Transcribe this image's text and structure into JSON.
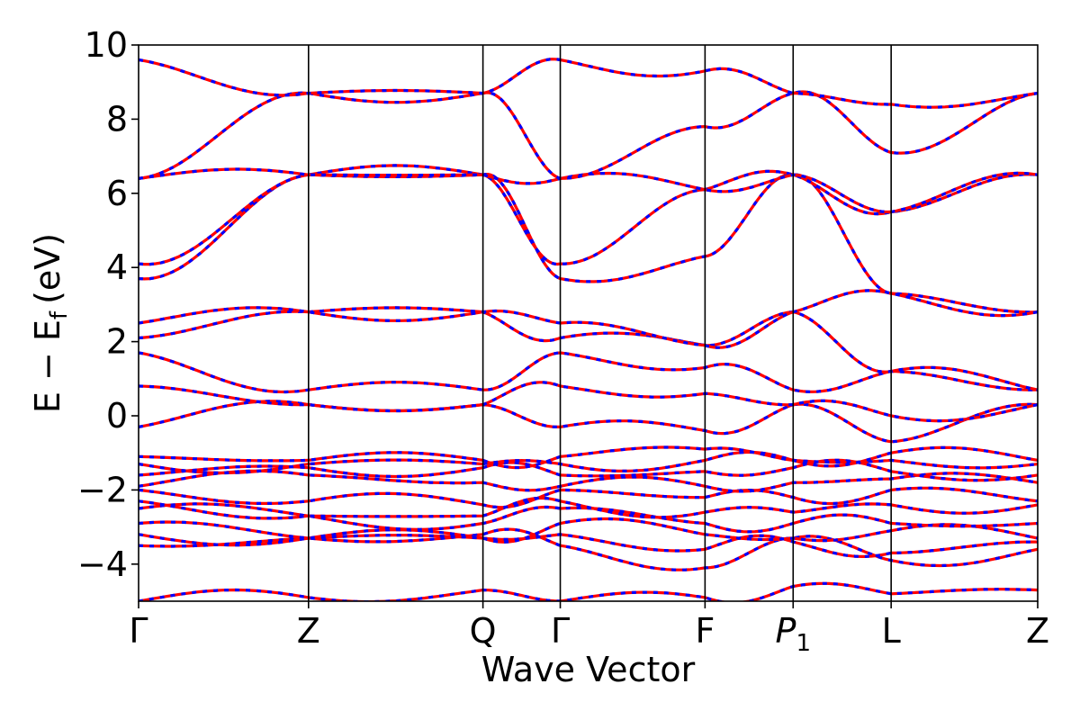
{
  "chart_data": {
    "type": "line",
    "xlabel": "Wave Vector",
    "ylabel": "E − E",
    "ylabel_sub": "f",
    "ylabel_unit": "(eV)",
    "ylim": [
      -5,
      10
    ],
    "yticks": [
      -4,
      -2,
      0,
      2,
      4,
      6,
      8,
      10
    ],
    "ytick_labels": [
      "−4",
      "−2",
      "0",
      "2",
      "4",
      "6",
      "8",
      "10"
    ],
    "xlim": [
      0,
      1
    ],
    "kpath": [
      {
        "label": "Γ",
        "x": 0.0
      },
      {
        "label": "Z",
        "x": 0.189
      },
      {
        "label": "Q",
        "x": 0.383
      },
      {
        "label": "Γ",
        "x": 0.469
      },
      {
        "label": "F",
        "x": 0.63
      },
      {
        "label": "P",
        "sub": "1",
        "x": 0.728
      },
      {
        "label": "L",
        "x": 0.837
      },
      {
        "label": "Z",
        "x": 1.0
      }
    ],
    "grid": false,
    "series_colors": {
      "solid": "#ff0000",
      "dashed": "#0000ff"
    },
    "band_energies_at_kpoints": [
      [
        -5.0,
        -4.9,
        -4.7,
        -5.0,
        -4.9,
        -4.6,
        -4.8,
        -4.7
      ],
      [
        -3.5,
        -3.3,
        -3.2,
        -3.5,
        -4.1,
        -3.3,
        -3.9,
        -3.6
      ],
      [
        -3.2,
        -3.3,
        -3.3,
        -3.2,
        -3.6,
        -3.4,
        -3.7,
        -3.4
      ],
      [
        -2.9,
        -3.3,
        -3.3,
        -2.9,
        -3.2,
        -3.3,
        -3.1,
        -3.3
      ],
      [
        -2.5,
        -2.7,
        -2.9,
        -2.5,
        -2.9,
        -2.9,
        -2.9,
        -2.9
      ],
      [
        -2.3,
        -2.7,
        -2.7,
        -2.3,
        -2.6,
        -2.6,
        -2.4,
        -2.4
      ],
      [
        -2.0,
        -2.3,
        -2.4,
        -2.0,
        -2.2,
        -2.2,
        -2.0,
        -2.3
      ],
      [
        -1.9,
        -1.6,
        -1.8,
        -1.9,
        -1.9,
        -1.8,
        -1.7,
        -1.8
      ],
      [
        -1.6,
        -1.4,
        -1.4,
        -1.6,
        -1.5,
        -1.4,
        -1.5,
        -1.6
      ],
      [
        -1.3,
        -1.3,
        -1.3,
        -1.3,
        -1.2,
        -1.2,
        -1.2,
        -1.3
      ],
      [
        -1.1,
        -1.2,
        -1.2,
        -1.1,
        -0.9,
        -1.2,
        -1.0,
        -1.2
      ],
      [
        -0.3,
        0.3,
        0.3,
        -0.3,
        -0.4,
        0.3,
        -0.7,
        0.3
      ],
      [
        0.8,
        0.3,
        0.3,
        0.8,
        0.6,
        0.3,
        0.0,
        0.3
      ],
      [
        1.7,
        0.7,
        0.7,
        1.7,
        1.3,
        0.7,
        1.2,
        0.7
      ],
      [
        2.1,
        2.8,
        2.8,
        2.1,
        1.9,
        2.8,
        1.2,
        0.7
      ],
      [
        2.5,
        2.8,
        2.8,
        2.5,
        1.9,
        2.8,
        3.3,
        2.8
      ],
      [
        3.7,
        6.5,
        6.5,
        3.7,
        4.3,
        6.5,
        3.3,
        2.8
      ],
      [
        4.1,
        6.5,
        6.5,
        4.1,
        6.1,
        6.5,
        5.5,
        6.5
      ],
      [
        6.4,
        6.5,
        6.5,
        6.4,
        6.1,
        6.5,
        5.5,
        6.5
      ],
      [
        6.4,
        8.7,
        8.7,
        6.4,
        7.8,
        8.7,
        7.1,
        8.7
      ],
      [
        9.6,
        8.7,
        8.7,
        9.6,
        9.3,
        8.7,
        8.4,
        8.7
      ]
    ]
  }
}
